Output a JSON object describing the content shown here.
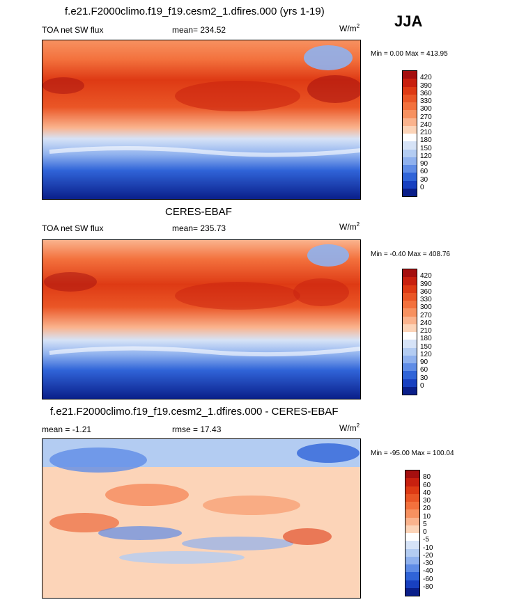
{
  "season": "JJA",
  "panels": [
    {
      "title": "f.e21.F2000climo.f19_f19.cesm2_1.dfires.000 (yrs 1-19)",
      "left_label": "TOA net SW flux",
      "center_label": "mean= 234.52",
      "unit": "W/m",
      "unit_sup": "2",
      "minmax": "Min =  0.00 Max = 413.95"
    },
    {
      "title": "CERES-EBAF",
      "left_label": "TOA net SW flux",
      "center_label": "mean= 235.73",
      "unit": "W/m",
      "unit_sup": "2",
      "minmax": "Min =  -0.40 Max = 408.76"
    },
    {
      "title": "f.e21.F2000climo.f19_f19.cesm2_1.dfires.000 - CERES-EBAF",
      "left_label": "mean =  -1.21",
      "center_label": "rmse =  17.43",
      "unit": "W/m",
      "unit_sup": "2",
      "minmax": "Min = -95.00 Max = 100.04"
    }
  ],
  "chart_data": [
    {
      "type": "heatmap",
      "title": "f.e21.F2000climo.f19_f19.cesm2_1.dfires.000 (yrs 1-19)",
      "variable": "TOA net SW flux",
      "mean": 234.52,
      "min": 0.0,
      "max": 413.95,
      "colorbar_labels": [
        "420",
        "390",
        "360",
        "330",
        "300",
        "270",
        "240",
        "210",
        "180",
        "150",
        "120",
        "90",
        "60",
        "30",
        "0"
      ],
      "colors": [
        "#a50f0f",
        "#c8200f",
        "#de3a14",
        "#ea5626",
        "#f3713d",
        "#f79160",
        "#fab38d",
        "#fcd4b8",
        "#ffffff",
        "#d6e3f7",
        "#b3ccf2",
        "#8fb1ee",
        "#5f8ce6",
        "#3064d8",
        "#1840c0",
        "#0a1f8a"
      ]
    },
    {
      "type": "heatmap",
      "title": "CERES-EBAF",
      "variable": "TOA net SW flux",
      "mean": 235.73,
      "min": -0.4,
      "max": 408.76,
      "colorbar_labels": [
        "420",
        "390",
        "360",
        "330",
        "300",
        "270",
        "240",
        "210",
        "180",
        "150",
        "120",
        "90",
        "60",
        "30",
        "0"
      ],
      "colors": [
        "#a50f0f",
        "#c8200f",
        "#de3a14",
        "#ea5626",
        "#f3713d",
        "#f79160",
        "#fab38d",
        "#fcd4b8",
        "#ffffff",
        "#d6e3f7",
        "#b3ccf2",
        "#8fb1ee",
        "#5f8ce6",
        "#3064d8",
        "#1840c0",
        "#0a1f8a"
      ]
    },
    {
      "type": "heatmap",
      "title": "f.e21.F2000climo.f19_f19.cesm2_1.dfires.000 - CERES-EBAF",
      "mean": -1.21,
      "rmse": 17.43,
      "min": -95.0,
      "max": 100.04,
      "colorbar_labels": [
        "80",
        "60",
        "40",
        "30",
        "20",
        "10",
        "5",
        "0",
        "-5",
        "-10",
        "-20",
        "-30",
        "-40",
        "-60",
        "-80"
      ],
      "colors": [
        "#a50f0f",
        "#c8200f",
        "#de3a14",
        "#ea5626",
        "#f3713d",
        "#f79160",
        "#fab38d",
        "#fcd4b8",
        "#ffffff",
        "#d6e3f7",
        "#b3ccf2",
        "#8fb1ee",
        "#5f8ce6",
        "#3064d8",
        "#1840c0",
        "#0a1f8a"
      ]
    }
  ]
}
